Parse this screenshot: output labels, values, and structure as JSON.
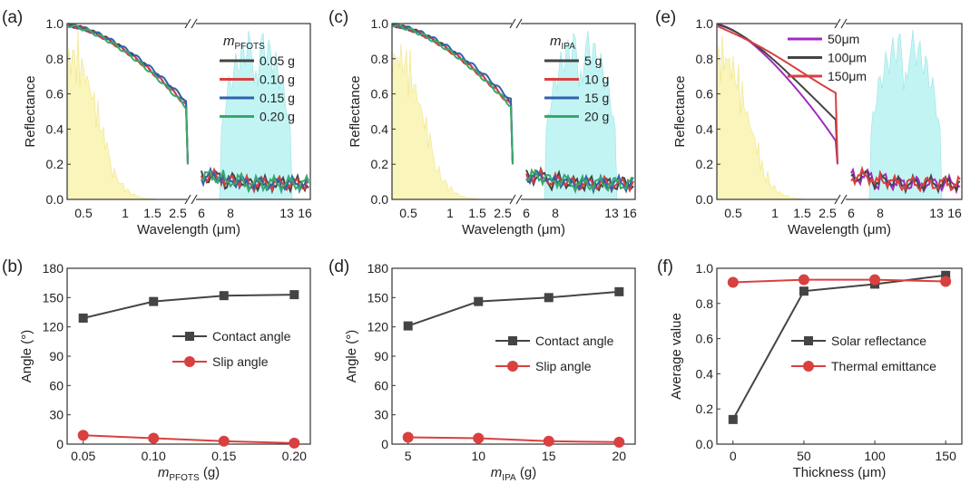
{
  "chart_data": [
    {
      "id": "a",
      "panel_label": "(a)",
      "type": "line",
      "title": "",
      "xlabel": "Wavelength (μm)",
      "ylabel": "Reflectance",
      "ylim": [
        0,
        1.0
      ],
      "yticks": [
        "0.0",
        "0.2",
        "0.4",
        "0.6",
        "0.8",
        "1.0"
      ],
      "xticks_left": [
        "0.5",
        "1",
        "1.5",
        "2.5"
      ],
      "xticks_right": [
        "6",
        "8",
        "13",
        "16"
      ],
      "legend_title": "m",
      "legend_title_sub": "PFOTS",
      "legend_position": "upper-right",
      "series": [
        {
          "name": "0.05 g",
          "color": "#444444",
          "offset": 0.0
        },
        {
          "name": "0.10 g",
          "color": "#d94040",
          "offset": -0.01
        },
        {
          "name": "0.15 g",
          "color": "#2f62b0",
          "offset": 0.015
        },
        {
          "name": "0.20 g",
          "color": "#3aa86b",
          "offset": -0.02
        }
      ]
    },
    {
      "id": "c",
      "panel_label": "(c)",
      "type": "line",
      "title": "",
      "xlabel": "Wavelength (μm)",
      "ylabel": "Reflectance",
      "ylim": [
        0,
        1.0
      ],
      "yticks": [
        "0.0",
        "0.2",
        "0.4",
        "0.6",
        "0.8",
        "1.0"
      ],
      "xticks_left": [
        "0.5",
        "1",
        "1.5",
        "2.5"
      ],
      "xticks_right": [
        "6",
        "8",
        "13",
        "16"
      ],
      "legend_title": "m",
      "legend_title_sub": "IPA",
      "legend_position": "upper-right",
      "series": [
        {
          "name": "5 g",
          "color": "#444444",
          "offset": 0.0
        },
        {
          "name": "10 g",
          "color": "#d94040",
          "offset": -0.01
        },
        {
          "name": "15 g",
          "color": "#2f62b0",
          "offset": 0.02
        },
        {
          "name": "20 g",
          "color": "#3aa86b",
          "offset": -0.015
        }
      ]
    },
    {
      "id": "e",
      "panel_label": "(e)",
      "type": "line",
      "title": "",
      "xlabel": "Wavelength (μm)",
      "ylabel": "Reflectance",
      "ylim": [
        0,
        1.0
      ],
      "yticks": [
        "0.0",
        "0.2",
        "0.4",
        "0.6",
        "0.8",
        "1.0"
      ],
      "xticks_left": [
        "0.5",
        "1",
        "1.5",
        "2.5"
      ],
      "xticks_right": [
        "6",
        "8",
        "13",
        "16"
      ],
      "legend_position": "upper-right",
      "series": [
        {
          "name": "50μm",
          "color": "#a02bc0",
          "offset": -0.12
        },
        {
          "name": "100μm",
          "color": "#444444",
          "offset": -0.06
        },
        {
          "name": "150μm",
          "color": "#d94040",
          "offset": 0.03
        }
      ]
    },
    {
      "id": "b",
      "panel_label": "(b)",
      "type": "line",
      "xlabel": "m",
      "xlabel_sub": "PFOTS",
      "xlabel_unit": " (g)",
      "ylabel": "Angle (°)",
      "x": [
        0.05,
        0.1,
        0.15,
        0.2
      ],
      "xticks": [
        "0.05",
        "0.10",
        "0.15",
        "0.20"
      ],
      "yticks": [
        "0",
        "30",
        "60",
        "90",
        "120",
        "150",
        "180"
      ],
      "ylim": [
        0,
        180
      ],
      "legend_position": "center-right",
      "series": [
        {
          "name": "Contact angle",
          "color": "#444444",
          "marker": "square",
          "values": [
            129,
            146,
            152,
            153
          ]
        },
        {
          "name": "Slip angle",
          "color": "#d94040",
          "marker": "circle",
          "values": [
            9,
            6,
            3,
            1
          ]
        }
      ]
    },
    {
      "id": "d",
      "panel_label": "(d)",
      "type": "line",
      "xlabel": "m",
      "xlabel_sub": "IPA",
      "xlabel_unit": " (g)",
      "ylabel": "Angle (°)",
      "x": [
        5,
        10,
        15,
        20
      ],
      "xticks": [
        "5",
        "10",
        "15",
        "20"
      ],
      "yticks": [
        "0",
        "30",
        "60",
        "90",
        "120",
        "150",
        "180"
      ],
      "ylim": [
        0,
        180
      ],
      "legend_position": "center-right",
      "series": [
        {
          "name": "Contact angle",
          "color": "#444444",
          "marker": "square",
          "values": [
            121,
            146,
            150,
            156
          ]
        },
        {
          "name": "Slip angle",
          "color": "#d94040",
          "marker": "circle",
          "values": [
            7,
            6,
            3,
            2
          ]
        }
      ]
    },
    {
      "id": "f",
      "panel_label": "(f)",
      "type": "line",
      "xlabel": "Thickness (μm)",
      "ylabel": "Average value",
      "x": [
        0,
        50,
        100,
        150
      ],
      "xticks": [
        "0",
        "50",
        "100",
        "150"
      ],
      "yticks": [
        "0.0",
        "0.2",
        "0.4",
        "0.6",
        "0.8",
        "1.0"
      ],
      "ylim": [
        0,
        1.0
      ],
      "legend_position": "center-right",
      "series": [
        {
          "name": "Solar reflectance",
          "color": "#444444",
          "marker": "square",
          "values": [
            0.14,
            0.87,
            0.91,
            0.96
          ]
        },
        {
          "name": "Thermal emittance",
          "color": "#d94040",
          "marker": "circle",
          "values": [
            0.92,
            0.935,
            0.935,
            0.925
          ]
        }
      ]
    }
  ]
}
